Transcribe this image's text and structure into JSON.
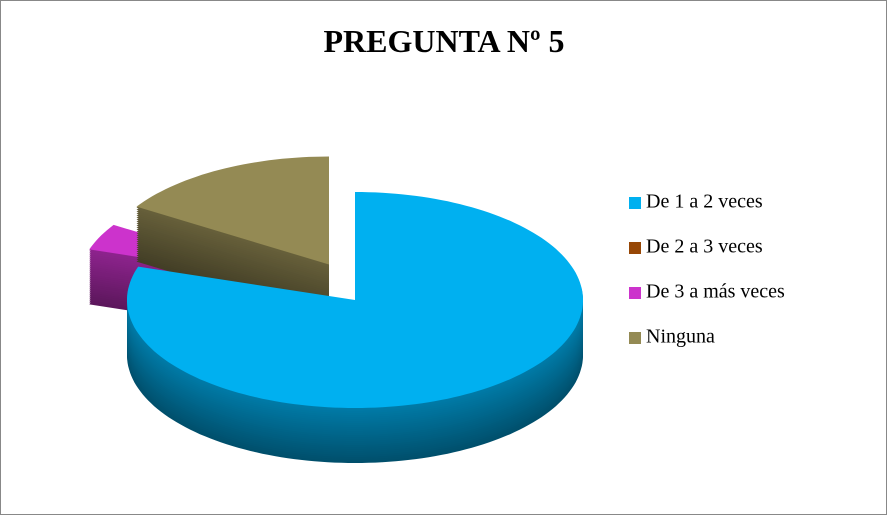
{
  "chart_data": {
    "type": "pie3d",
    "title": "PREGUNTA  Nº 5",
    "categories": [
      "De 1 a 2 veces",
      "De 2 a 3 veces",
      "De 3 a más veces",
      "Ninguna"
    ],
    "values": [
      80,
      0,
      4,
      16
    ],
    "colors": [
      "#00b0f0",
      "#974706",
      "#cc33cc",
      "#948a54"
    ],
    "legend": "right"
  }
}
